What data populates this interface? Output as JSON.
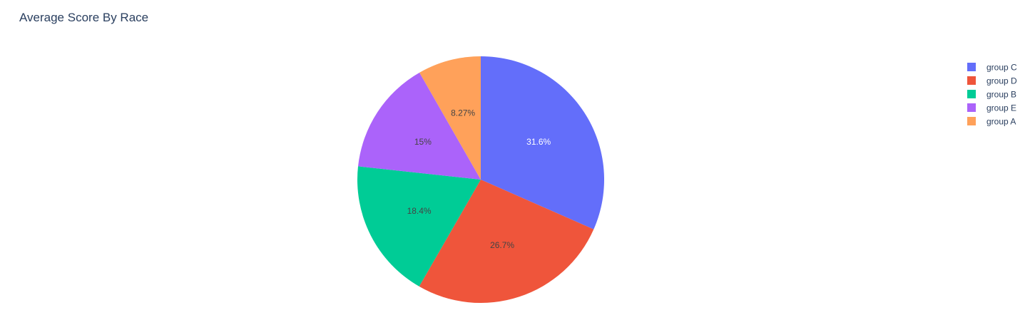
{
  "chart_data": {
    "type": "pie",
    "title": "Average Score By Race",
    "categories": [
      "group C",
      "group D",
      "group B",
      "group E",
      "group A"
    ],
    "values": [
      31.6,
      26.7,
      18.4,
      15,
      8.27
    ],
    "value_labels": [
      "31.6%",
      "26.7%",
      "18.4%",
      "15%",
      "8.27%"
    ],
    "colors": [
      "#636efa",
      "#EF553B",
      "#00cc96",
      "#ab63fa",
      "#FFA15A"
    ],
    "label_colors": [
      "#ffffff",
      "#444444",
      "#444444",
      "#444444",
      "#444444"
    ],
    "direction": "clockwise",
    "rotation_start": "top",
    "legend_position": "top-right"
  }
}
